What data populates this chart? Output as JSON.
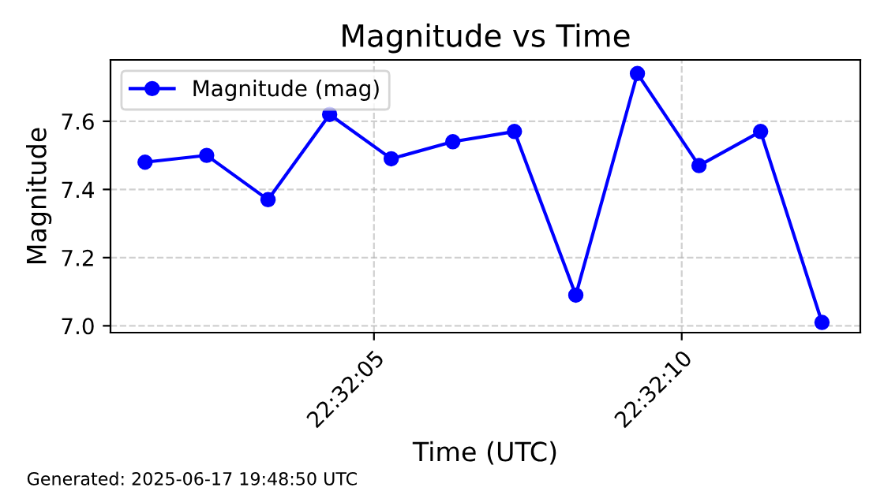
{
  "chart_data": {
    "type": "line",
    "title": "Magnitude vs Time",
    "xlabel": "Time (UTC)",
    "ylabel": "Magnitude",
    "x": [
      22.533689,
      22.533967,
      22.534244,
      22.534522,
      22.5348,
      22.535078,
      22.535356,
      22.535633,
      22.535911,
      22.536189,
      22.536467,
      22.536744
    ],
    "series": [
      {
        "name": "Magnitude (mag)",
        "color": "#0000ff",
        "values": [
          7.48,
          7.5,
          7.37,
          7.62,
          7.49,
          7.54,
          7.57,
          7.09,
          7.74,
          7.47,
          7.57,
          7.01
        ]
      }
    ],
    "xlim": [
      22.533533,
      22.536917
    ],
    "xticks": [
      {
        "value": 22.534722,
        "label": "22:32:05"
      },
      {
        "value": 22.536111,
        "label": "22:32:10"
      }
    ],
    "ylim": [
      6.98,
      7.78
    ],
    "yticks": [
      {
        "value": 7.0,
        "label": "7.0"
      },
      {
        "value": 7.2,
        "label": "7.2"
      },
      {
        "value": 7.4,
        "label": "7.4"
      },
      {
        "value": 7.6,
        "label": "7.6"
      }
    ],
    "grid": true,
    "legend": "top left",
    "marker": "circle",
    "line_style": "solid",
    "annotations": [
      "Generated: 2025-06-17 19:48:50 UTC"
    ]
  }
}
